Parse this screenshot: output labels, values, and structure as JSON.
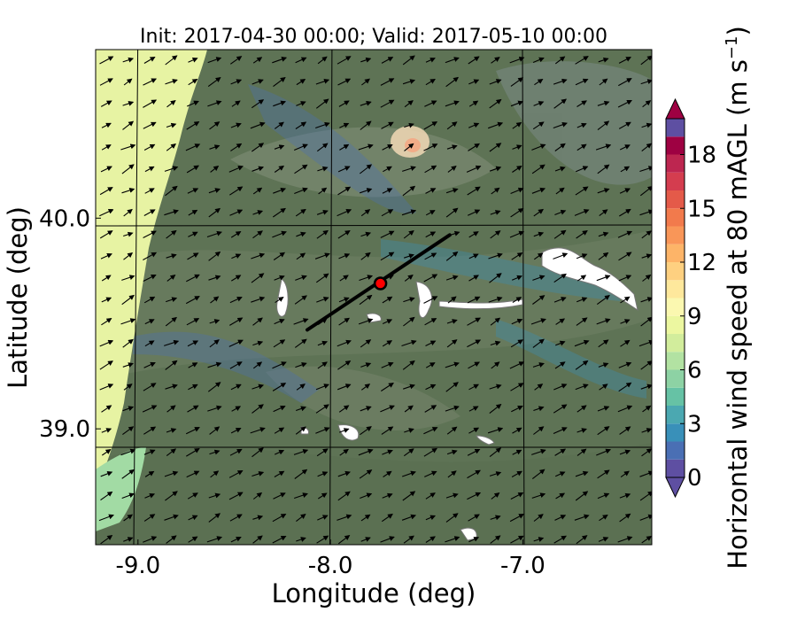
{
  "chart_data": {
    "type": "heatmap",
    "title": "Init: 2017-04-30 00:00; Valid: 2017-05-10 00:00",
    "xlabel": "Longitude (deg)",
    "ylabel": "Latitude (deg)",
    "xlim": [
      -9.22,
      -6.33
    ],
    "ylim": [
      38.45,
      40.8
    ],
    "xticks": [
      -9.0,
      -8.0,
      -7.0
    ],
    "xtick_labels": [
      "-9.0",
      "-8.0",
      "-7.0"
    ],
    "yticks": [
      39.0,
      40.0
    ],
    "ytick_labels": [
      "39.0",
      "40.0"
    ],
    "grid": true,
    "colorbar": {
      "label": "Horizontal wind speed at 80 mAGL (m s",
      "label_sup": "−1",
      "label_end": ")",
      "min": 0,
      "max": 20,
      "levels": [
        0,
        1,
        2,
        3,
        4,
        5,
        6,
        7,
        8,
        9,
        10,
        11,
        12,
        13,
        14,
        15,
        16,
        17,
        18,
        19,
        20
      ],
      "ticks": [
        0,
        3,
        6,
        9,
        12,
        15,
        18
      ],
      "tick_labels": [
        "0",
        "3",
        "6",
        "9",
        "12",
        "15",
        "18"
      ],
      "extend": "both",
      "colors": [
        "#5e4fa2",
        "#4a6fb4",
        "#3990b9",
        "#4ba8b1",
        "#66c2a5",
        "#8dd2a4",
        "#b2e2a2",
        "#d2ed9c",
        "#ecf7a0",
        "#fbf8b0",
        "#fee89c",
        "#fed080",
        "#fdb468",
        "#f99658",
        "#f27a4c",
        "#e45a49",
        "#d43d4f",
        "#bd2650",
        "#9e0142"
      ],
      "under_color": "#5e4fa2",
      "over_color": "#9e0142"
    },
    "cross_section_line": {
      "start": {
        "lon": -8.12,
        "lat": 39.47
      },
      "end": {
        "lon": -7.38,
        "lat": 39.92
      }
    },
    "site_marker": {
      "lon": -7.74,
      "lat": 39.69,
      "color": "#ff0000"
    },
    "background_color": "#5e7355",
    "coastal_high_wind_color": "#e7f3a3",
    "vector_color": "#000000",
    "vector_direction": "southwest-to-northeast"
  }
}
